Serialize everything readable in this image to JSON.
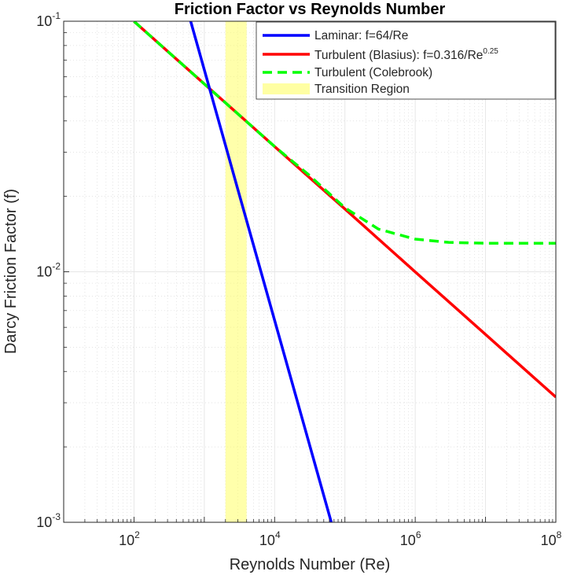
{
  "chart_data": {
    "type": "line",
    "title": "Friction Factor vs Reynolds Number",
    "xlabel": "Reynolds Number (Re)",
    "ylabel": "Darcy Friction Factor (f)",
    "xscale": "log",
    "yscale": "log",
    "xlim": [
      10,
      100000000
    ],
    "ylim": [
      0.001,
      0.1
    ],
    "x_tick_labels": [
      {
        "base": "10",
        "exp": "2"
      },
      {
        "base": "10",
        "exp": "4"
      },
      {
        "base": "10",
        "exp": "6"
      },
      {
        "base": "10",
        "exp": "8"
      }
    ],
    "x_tick_values": [
      100,
      10000,
      1000000,
      100000000
    ],
    "y_tick_labels": [
      {
        "base": "10",
        "exp": "-3"
      },
      {
        "base": "10",
        "exp": "-2"
      },
      {
        "base": "10",
        "exp": "-1"
      }
    ],
    "y_tick_values": [
      0.001,
      0.01,
      0.1
    ],
    "grid": true,
    "minor_grid": true,
    "legend_position": "top-right",
    "series": [
      {
        "name": "Laminar: f=64/Re",
        "color": "#0000ff",
        "style": "solid",
        "x": [
          640,
          1000,
          2000,
          3000,
          5000,
          10000,
          20000,
          40000,
          64000
        ],
        "y": [
          0.1,
          0.064,
          0.032,
          0.0213,
          0.0128,
          0.0064,
          0.0032,
          0.0016,
          0.001
        ]
      },
      {
        "name": "Turbulent (Blasius): f=0.316/Re^0.25",
        "name_parts": {
          "main": "Turbulent  (Blasius):  f=0.316/Re",
          "exp": "0.25"
        },
        "color": "#ff0000",
        "style": "solid",
        "x": [
          100,
          1000,
          10000,
          100000,
          1000000,
          10000000,
          100000000
        ],
        "y": [
          0.0999,
          0.0562,
          0.0316,
          0.0178,
          0.00999,
          0.00562,
          0.00316
        ]
      },
      {
        "name": "Turbulent (Colebrook)",
        "color": "#00ff00",
        "style": "dashed",
        "x": [
          100,
          1000,
          10000,
          30000,
          100000,
          300000,
          1000000,
          3000000,
          10000000,
          100000000
        ],
        "y": [
          0.0999,
          0.0562,
          0.0316,
          0.0245,
          0.018,
          0.0148,
          0.0135,
          0.0131,
          0.013,
          0.013
        ]
      }
    ],
    "regions": [
      {
        "name": "Transition Region",
        "x_from": 2000,
        "x_to": 4000,
        "color": "#ffff66"
      }
    ]
  }
}
